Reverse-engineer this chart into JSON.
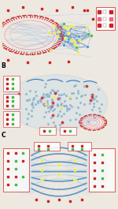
{
  "bg_color": "#ede8e0",
  "panel_bg_A": "#dce8f0",
  "panel_bg_B": "#dce8f0",
  "panel_bg_C": "#dce8f0",
  "fig_width": 1.5,
  "fig_height": 2.65,
  "node_yellow": "#f0e840",
  "node_green": "#44bb44",
  "node_red": "#cc2222",
  "node_pink": "#ee6688",
  "node_blue": "#5599cc",
  "edge_blue": "#3377bb",
  "edge_mid_blue": "#6699cc",
  "edge_light_blue": "#99bbdd",
  "edge_cyan": "#55bbcc",
  "edge_pale": "#aac8dd",
  "circle_red": "#cc2222",
  "circle_pink": "#ee88aa",
  "circle_dkred": "#aa1111",
  "label_color": "#333333",
  "white": "#ffffff",
  "panel_border": "#bbbbbb"
}
